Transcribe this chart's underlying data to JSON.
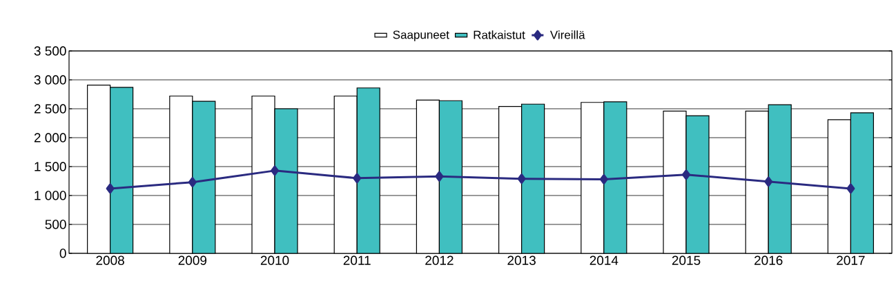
{
  "chart_data": {
    "type": "bar",
    "categories": [
      "2008",
      "2009",
      "2010",
      "2011",
      "2012",
      "2013",
      "2014",
      "2015",
      "2016",
      "2017"
    ],
    "series": [
      {
        "name": "Saapuneet",
        "color": "#ffffff",
        "values": [
          2910,
          2720,
          2720,
          2720,
          2650,
          2540,
          2610,
          2460,
          2460,
          2310
        ]
      },
      {
        "name": "Ratkaistut",
        "color": "#40bfc0",
        "values": [
          2870,
          2630,
          2500,
          2860,
          2640,
          2580,
          2620,
          2380,
          2570,
          2430
        ]
      },
      {
        "name": "Vireillä",
        "type": "line",
        "color": "#2a2a80",
        "marker": "diamond",
        "values": [
          1120,
          1230,
          1430,
          1300,
          1330,
          1290,
          1280,
          1360,
          1240,
          1120
        ]
      }
    ],
    "ylim": [
      0,
      3500
    ],
    "yticks": [
      0,
      500,
      {
        "value": 1000,
        "label": "1 000"
      },
      {
        "value": 1500,
        "label": "1 500"
      },
      {
        "value": 2000,
        "label": "2 000"
      },
      {
        "value": 2500,
        "label": "2 500"
      },
      {
        "value": 3000,
        "label": "3 000"
      },
      {
        "value": 3500,
        "label": "3 500"
      }
    ],
    "grid": "y",
    "legend": "top"
  }
}
